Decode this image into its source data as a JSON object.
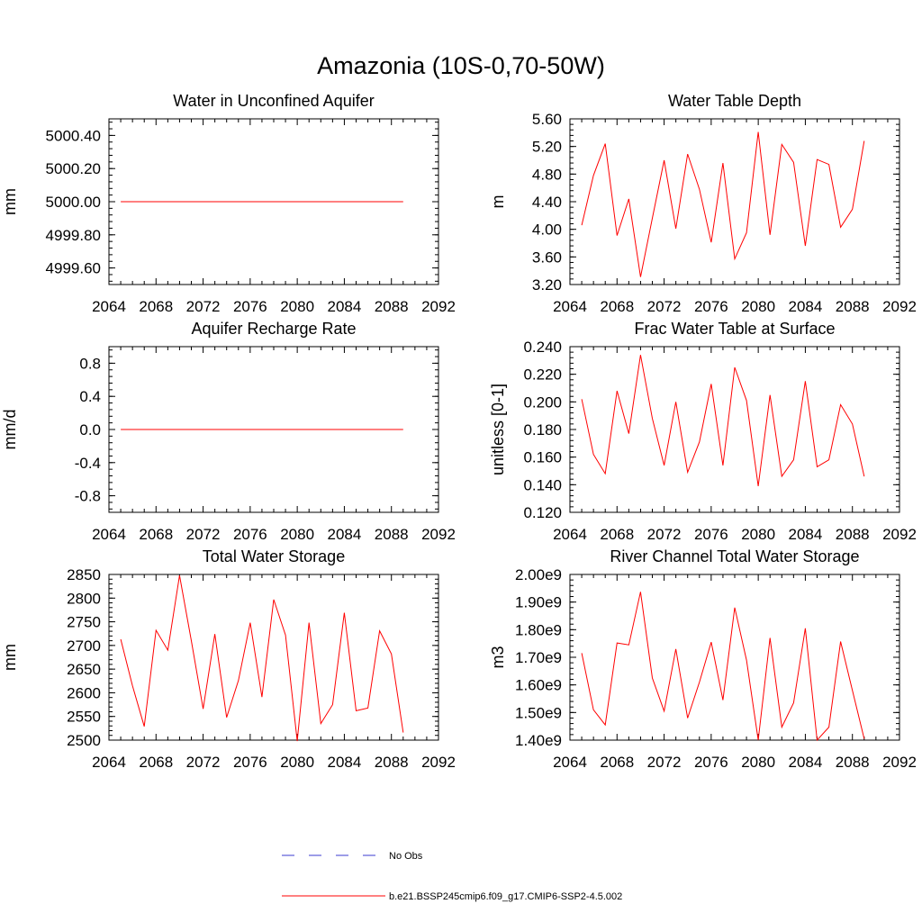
{
  "figure_title": "Amazonia (10S-0,70-50W)",
  "colors": {
    "model": "#ff0000",
    "obs": "#3b3bd0",
    "axis": "#000000"
  },
  "legend": [
    {
      "label": "No Obs",
      "style": "dashed",
      "color": "#3b3bd0"
    },
    {
      "label": "b.e21.BSSP245cmip6.f09_g17.CMIP6-SSP2-4.5.002",
      "style": "solid",
      "color": "#ff0000"
    }
  ],
  "chart_data": [
    {
      "type": "line",
      "title": "Water in Unconfined Aquifer",
      "ylabel": "mm",
      "xlim": [
        2064,
        2092
      ],
      "ylim": [
        4999.5,
        5000.5
      ],
      "xticks": [
        "2064",
        "2068",
        "2072",
        "2076",
        "2080",
        "2084",
        "2088",
        "2092"
      ],
      "yticks": [
        {
          "value": 4999.6,
          "label": "4999.60"
        },
        {
          "value": 4999.8,
          "label": "4999.80"
        },
        {
          "value": 5000.0,
          "label": "5000.00"
        },
        {
          "value": 5000.2,
          "label": "5000.20"
        },
        {
          "value": 5000.4,
          "label": "5000.40"
        }
      ],
      "x": [
        2065,
        2066,
        2067,
        2068,
        2069,
        2070,
        2071,
        2072,
        2073,
        2074,
        2075,
        2076,
        2077,
        2078,
        2079,
        2080,
        2081,
        2082,
        2083,
        2084,
        2085,
        2086,
        2087,
        2088,
        2089
      ],
      "series": [
        {
          "name": "b.e21.BSSP245cmip6.f09_g17.CMIP6-SSP2-4.5.002",
          "values": [
            5000,
            5000,
            5000,
            5000,
            5000,
            5000,
            5000,
            5000,
            5000,
            5000,
            5000,
            5000,
            5000,
            5000,
            5000,
            5000,
            5000,
            5000,
            5000,
            5000,
            5000,
            5000,
            5000,
            5000,
            5000
          ]
        }
      ]
    },
    {
      "type": "line",
      "title": "Water Table Depth",
      "ylabel": "m",
      "xlim": [
        2064,
        2092
      ],
      "ylim": [
        3.2,
        5.6
      ],
      "xticks": [
        "2064",
        "2068",
        "2072",
        "2076",
        "2080",
        "2084",
        "2088",
        "2092"
      ],
      "yticks": [
        {
          "value": 3.2,
          "label": "3.20"
        },
        {
          "value": 3.6,
          "label": "3.60"
        },
        {
          "value": 4.0,
          "label": "4.00"
        },
        {
          "value": 4.4,
          "label": "4.40"
        },
        {
          "value": 4.8,
          "label": "4.80"
        },
        {
          "value": 5.2,
          "label": "5.20"
        },
        {
          "value": 5.6,
          "label": "5.60"
        }
      ],
      "x": [
        2065,
        2066,
        2067,
        2068,
        2069,
        2070,
        2071,
        2072,
        2073,
        2074,
        2075,
        2076,
        2077,
        2078,
        2079,
        2080,
        2081,
        2082,
        2083,
        2084,
        2085,
        2086,
        2087,
        2088,
        2089
      ],
      "series": [
        {
          "name": "b.e21.BSSP245cmip6.f09_g17.CMIP6-SSP2-4.5.002",
          "values": [
            4.06,
            4.78,
            5.24,
            3.91,
            4.44,
            3.31,
            4.16,
            5.0,
            4.01,
            5.09,
            4.58,
            3.81,
            4.96,
            3.57,
            3.95,
            5.41,
            3.92,
            5.23,
            4.97,
            3.76,
            5.01,
            4.94,
            4.03,
            4.29,
            5.28
          ]
        }
      ]
    },
    {
      "type": "line",
      "title": "Aquifer Recharge Rate",
      "ylabel": "mm/d",
      "xlim": [
        2064,
        2092
      ],
      "ylim": [
        -1.0,
        1.0
      ],
      "xticks": [
        "2064",
        "2068",
        "2072",
        "2076",
        "2080",
        "2084",
        "2088",
        "2092"
      ],
      "yticks": [
        {
          "value": -0.8,
          "label": "-0.8"
        },
        {
          "value": -0.4,
          "label": "-0.4"
        },
        {
          "value": 0.0,
          "label": "0.0"
        },
        {
          "value": 0.4,
          "label": "0.4"
        },
        {
          "value": 0.8,
          "label": "0.8"
        }
      ],
      "x": [
        2065,
        2066,
        2067,
        2068,
        2069,
        2070,
        2071,
        2072,
        2073,
        2074,
        2075,
        2076,
        2077,
        2078,
        2079,
        2080,
        2081,
        2082,
        2083,
        2084,
        2085,
        2086,
        2087,
        2088,
        2089
      ],
      "series": [
        {
          "name": "b.e21.BSSP245cmip6.f09_g17.CMIP6-SSP2-4.5.002",
          "values": [
            0,
            0,
            0,
            0,
            0,
            0,
            0,
            0,
            0,
            0,
            0,
            0,
            0,
            0,
            0,
            0,
            0,
            0,
            0,
            0,
            0,
            0,
            0,
            0,
            0
          ]
        }
      ]
    },
    {
      "type": "line",
      "title": "Frac Water Table at Surface",
      "ylabel": "unitless [0-1]",
      "xlim": [
        2064,
        2092
      ],
      "ylim": [
        0.12,
        0.24
      ],
      "xticks": [
        "2064",
        "2068",
        "2072",
        "2076",
        "2080",
        "2084",
        "2088",
        "2092"
      ],
      "yticks": [
        {
          "value": 0.12,
          "label": "0.120"
        },
        {
          "value": 0.14,
          "label": "0.140"
        },
        {
          "value": 0.16,
          "label": "0.160"
        },
        {
          "value": 0.18,
          "label": "0.180"
        },
        {
          "value": 0.2,
          "label": "0.200"
        },
        {
          "value": 0.22,
          "label": "0.220"
        },
        {
          "value": 0.24,
          "label": "0.240"
        }
      ],
      "x": [
        2065,
        2066,
        2067,
        2068,
        2069,
        2070,
        2071,
        2072,
        2073,
        2074,
        2075,
        2076,
        2077,
        2078,
        2079,
        2080,
        2081,
        2082,
        2083,
        2084,
        2085,
        2086,
        2087,
        2088,
        2089
      ],
      "series": [
        {
          "name": "b.e21.BSSP245cmip6.f09_g17.CMIP6-SSP2-4.5.002",
          "values": [
            0.202,
            0.162,
            0.148,
            0.208,
            0.177,
            0.234,
            0.188,
            0.154,
            0.2,
            0.149,
            0.171,
            0.213,
            0.154,
            0.225,
            0.201,
            0.139,
            0.205,
            0.146,
            0.158,
            0.215,
            0.153,
            0.158,
            0.198,
            0.184,
            0.146
          ]
        }
      ]
    },
    {
      "type": "line",
      "title": "Total Water Storage",
      "ylabel": "mm",
      "xlim": [
        2064,
        2092
      ],
      "ylim": [
        2500,
        2850
      ],
      "xticks": [
        "2064",
        "2068",
        "2072",
        "2076",
        "2080",
        "2084",
        "2088",
        "2092"
      ],
      "yticks": [
        {
          "value": 2500,
          "label": "2500"
        },
        {
          "value": 2550,
          "label": "2550"
        },
        {
          "value": 2600,
          "label": "2600"
        },
        {
          "value": 2650,
          "label": "2650"
        },
        {
          "value": 2700,
          "label": "2700"
        },
        {
          "value": 2750,
          "label": "2750"
        },
        {
          "value": 2800,
          "label": "2800"
        },
        {
          "value": 2850,
          "label": "2850"
        }
      ],
      "x": [
        2065,
        2066,
        2067,
        2068,
        2069,
        2070,
        2071,
        2072,
        2073,
        2074,
        2075,
        2076,
        2077,
        2078,
        2079,
        2080,
        2081,
        2082,
        2083,
        2084,
        2085,
        2086,
        2087,
        2088,
        2089
      ],
      "series": [
        {
          "name": "b.e21.BSSP245cmip6.f09_g17.CMIP6-SSP2-4.5.002",
          "values": [
            2713,
            2615,
            2529,
            2732,
            2690,
            2848,
            2710,
            2566,
            2724,
            2548,
            2626,
            2748,
            2591,
            2797,
            2722,
            2498,
            2748,
            2535,
            2575,
            2769,
            2562,
            2568,
            2731,
            2682,
            2516
          ]
        }
      ]
    },
    {
      "type": "line",
      "title": "River Channel Total Water Storage",
      "ylabel": "m3",
      "xlim": [
        2064,
        2092
      ],
      "ylim": [
        1400000000.0,
        2000000000.0
      ],
      "xticks": [
        "2064",
        "2068",
        "2072",
        "2076",
        "2080",
        "2084",
        "2088",
        "2092"
      ],
      "yticks": [
        {
          "value": 1400000000.0,
          "label": "1.40e9"
        },
        {
          "value": 1500000000.0,
          "label": "1.50e9"
        },
        {
          "value": 1600000000.0,
          "label": "1.60e9"
        },
        {
          "value": 1700000000.0,
          "label": "1.70e9"
        },
        {
          "value": 1800000000.0,
          "label": "1.80e9"
        },
        {
          "value": 1900000000.0,
          "label": "1.90e9"
        },
        {
          "value": 2000000000.0,
          "label": "2.00e9"
        }
      ],
      "x": [
        2065,
        2066,
        2067,
        2068,
        2069,
        2070,
        2071,
        2072,
        2073,
        2074,
        2075,
        2076,
        2077,
        2078,
        2079,
        2080,
        2081,
        2082,
        2083,
        2084,
        2085,
        2086,
        2087,
        2088,
        2089
      ],
      "series": [
        {
          "name": "b.e21.BSSP245cmip6.f09_g17.CMIP6-SSP2-4.5.002",
          "values": [
            1715000000.0,
            1510000000.0,
            1455000000.0,
            1752000000.0,
            1745000000.0,
            1937000000.0,
            1625000000.0,
            1505000000.0,
            1730000000.0,
            1480000000.0,
            1610000000.0,
            1755000000.0,
            1545000000.0,
            1880000000.0,
            1690000000.0,
            1400000000.0,
            1770000000.0,
            1447000000.0,
            1535000000.0,
            1805000000.0,
            1400000000.0,
            1447000000.0,
            1757000000.0,
            1580000000.0,
            1405000000.0
          ]
        }
      ]
    }
  ]
}
